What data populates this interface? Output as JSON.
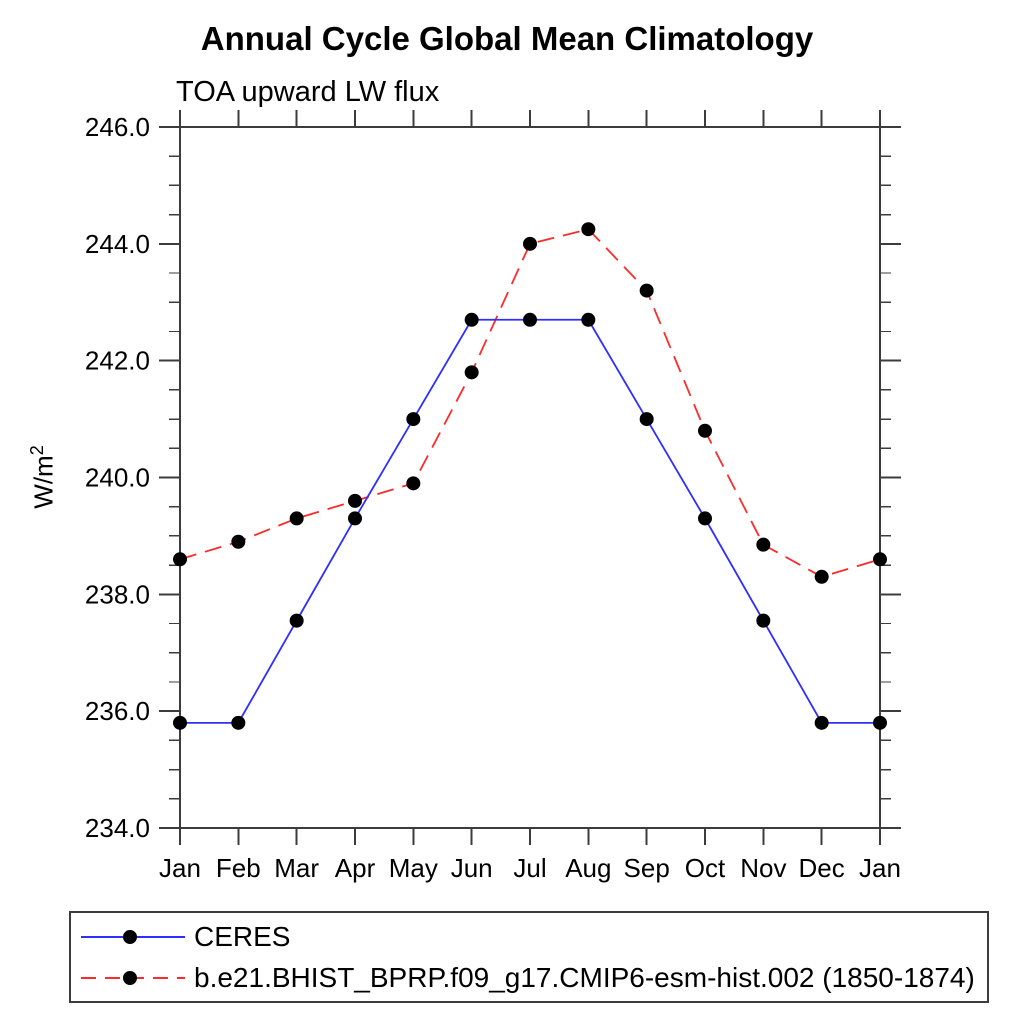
{
  "chart_data": {
    "type": "line",
    "title": "Annual Cycle Global Mean Climatology",
    "subtitle": "TOA upward LW flux",
    "ylabel": "W/m²",
    "ylabel_base": "W/m",
    "ylabel_sup": "2",
    "categories": [
      "Jan",
      "Feb",
      "Mar",
      "Apr",
      "May",
      "Jun",
      "Jul",
      "Aug",
      "Sep",
      "Oct",
      "Nov",
      "Dec",
      "Jan"
    ],
    "ylim": [
      234.0,
      246.0
    ],
    "ytick_step": 2.0,
    "ytick_minor_step": 0.5,
    "ytick_labels": [
      "234.0",
      "236.0",
      "238.0",
      "240.0",
      "242.0",
      "244.0",
      "246.0"
    ],
    "grid": false,
    "legend_position": "bottom-left-box",
    "axis_color": "#3c3c3c",
    "marker_color": "#000000",
    "marker_radius": 7,
    "series": [
      {
        "name": "CERES",
        "color": "#2e2eff",
        "style": "solid",
        "marker": "circle",
        "values": [
          235.8,
          235.8,
          237.55,
          239.3,
          241.0,
          242.7,
          242.7,
          242.7,
          241.0,
          239.3,
          237.55,
          235.8,
          235.8
        ]
      },
      {
        "name": "b.e21.BHIST_BPRP.f09_g17.CMIP6-esm-hist.002 (1850-1874)",
        "color": "#ff2a2a",
        "style": "dashed",
        "marker": "circle",
        "values": [
          238.6,
          238.9,
          239.3,
          239.6,
          239.9,
          241.8,
          244.0,
          244.25,
          243.2,
          240.8,
          238.85,
          238.3,
          238.6
        ]
      }
    ]
  }
}
